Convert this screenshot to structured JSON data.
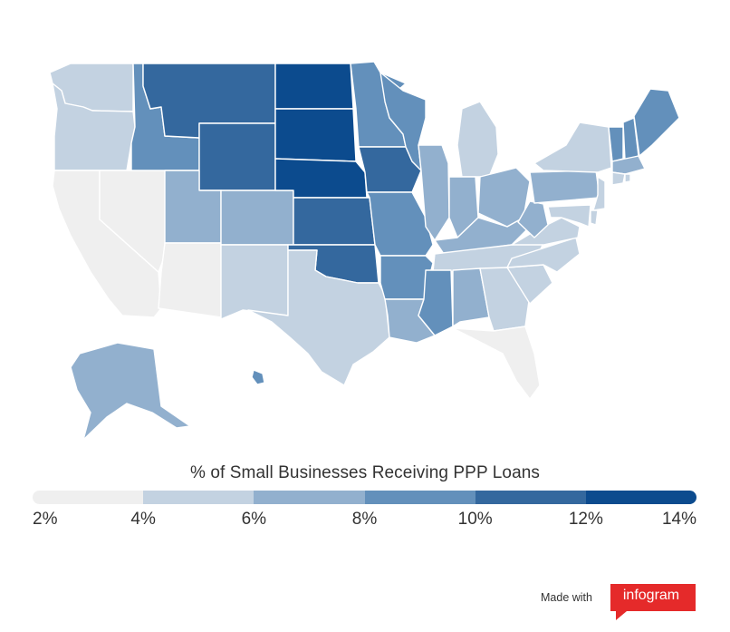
{
  "legend": {
    "title": "% of Small Businesses Receiving PPP Loans",
    "colors": [
      "#efefef",
      "#c3d2e1",
      "#92b0ce",
      "#6390bb",
      "#34689e",
      "#0c4b8e"
    ],
    "ticks": [
      "2%",
      "4%",
      "6%",
      "8%",
      "10%",
      "12%",
      "14%"
    ]
  },
  "footer": {
    "made_with": "Made with",
    "brand": "infogram",
    "brand_color": "#e52a2a"
  },
  "states": [
    {
      "id": "WA",
      "bucket": 1
    },
    {
      "id": "OR",
      "bucket": 1
    },
    {
      "id": "CA",
      "bucket": 0
    },
    {
      "id": "NV",
      "bucket": 0
    },
    {
      "id": "ID",
      "bucket": 3
    },
    {
      "id": "MT",
      "bucket": 4
    },
    {
      "id": "WY",
      "bucket": 4
    },
    {
      "id": "UT",
      "bucket": 2
    },
    {
      "id": "AZ",
      "bucket": 0
    },
    {
      "id": "CO",
      "bucket": 2
    },
    {
      "id": "NM",
      "bucket": 1
    },
    {
      "id": "ND",
      "bucket": 5
    },
    {
      "id": "SD",
      "bucket": 5
    },
    {
      "id": "NE",
      "bucket": 5
    },
    {
      "id": "KS",
      "bucket": 4
    },
    {
      "id": "OK",
      "bucket": 4
    },
    {
      "id": "TX",
      "bucket": 1
    },
    {
      "id": "MN",
      "bucket": 3
    },
    {
      "id": "IA",
      "bucket": 4
    },
    {
      "id": "MO",
      "bucket": 3
    },
    {
      "id": "AR",
      "bucket": 3
    },
    {
      "id": "LA",
      "bucket": 2
    },
    {
      "id": "WI",
      "bucket": 3
    },
    {
      "id": "IL",
      "bucket": 2
    },
    {
      "id": "MI",
      "bucket": 1
    },
    {
      "id": "IN",
      "bucket": 2
    },
    {
      "id": "OH",
      "bucket": 2
    },
    {
      "id": "KY",
      "bucket": 2
    },
    {
      "id": "TN",
      "bucket": 1
    },
    {
      "id": "MS",
      "bucket": 3
    },
    {
      "id": "AL",
      "bucket": 2
    },
    {
      "id": "GA",
      "bucket": 1
    },
    {
      "id": "FL",
      "bucket": 0
    },
    {
      "id": "SC",
      "bucket": 1
    },
    {
      "id": "NC",
      "bucket": 1
    },
    {
      "id": "VA",
      "bucket": 1
    },
    {
      "id": "WV",
      "bucket": 2
    },
    {
      "id": "PA",
      "bucket": 2
    },
    {
      "id": "NY",
      "bucket": 1
    },
    {
      "id": "VT",
      "bucket": 3
    },
    {
      "id": "NH",
      "bucket": 3
    },
    {
      "id": "ME",
      "bucket": 3
    },
    {
      "id": "MA",
      "bucket": 2
    },
    {
      "id": "CT",
      "bucket": 1
    },
    {
      "id": "RI",
      "bucket": 1
    },
    {
      "id": "NJ",
      "bucket": 1
    },
    {
      "id": "DE",
      "bucket": 1
    },
    {
      "id": "MD",
      "bucket": 1
    },
    {
      "id": "AK",
      "bucket": 2
    },
    {
      "id": "HI",
      "bucket": 3
    }
  ]
}
